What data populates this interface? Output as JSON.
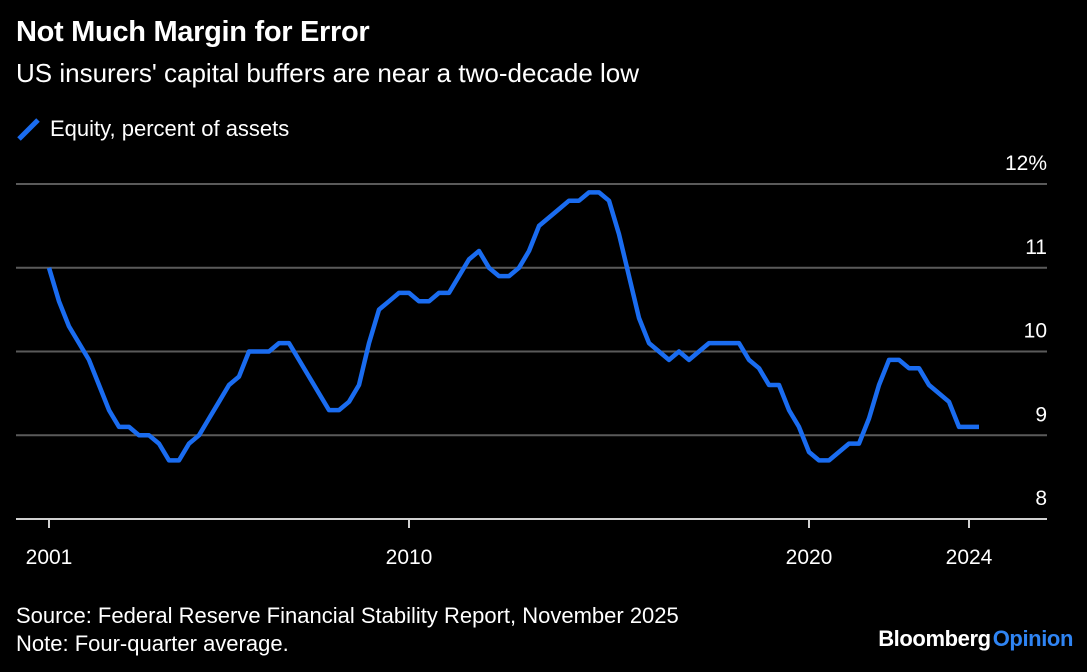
{
  "header": {
    "title": "Not Much Margin for Error",
    "subtitle": "US insurers' capital buffers are near a two-decade low"
  },
  "legend": {
    "label": "Equity, percent of assets"
  },
  "footer": {
    "source": "Source: Federal Reserve Financial Stability Report, November 2025",
    "note": "Note: Four-quarter average."
  },
  "brand": {
    "main": "Bloomberg",
    "accent": "Opinion"
  },
  "colors": {
    "background": "#000000",
    "line": "#1a6cf0",
    "grid": "#5a5a5a",
    "text": "#ffffff",
    "brand_accent": "#2f84f3"
  },
  "chart_data": {
    "type": "line",
    "title": "Not Much Margin for Error",
    "subtitle": "US insurers' capital buffers are near a two-decade low",
    "xlabel": "",
    "ylabel": "",
    "x_ticks": [
      2001,
      2010,
      2020,
      2024
    ],
    "x_tick_labels": [
      "2001",
      "2010",
      "2020",
      "2024"
    ],
    "y_ticks": [
      8,
      9,
      10,
      11,
      12
    ],
    "y_tick_labels": [
      "8",
      "9",
      "10",
      "11",
      "12%"
    ],
    "xlim": [
      2001,
      2026
    ],
    "ylim": [
      8,
      12
    ],
    "grid": "horizontal",
    "legend_position": "top-left",
    "series": [
      {
        "name": "Equity, percent of assets",
        "color": "#1a6cf0",
        "x": [
          2001.0,
          2001.25,
          2001.5,
          2001.75,
          2002.0,
          2002.25,
          2002.5,
          2002.75,
          2003.0,
          2003.25,
          2003.5,
          2003.75,
          2004.0,
          2004.25,
          2004.5,
          2004.75,
          2005.0,
          2005.25,
          2005.5,
          2005.75,
          2006.0,
          2006.25,
          2006.5,
          2006.75,
          2007.0,
          2007.25,
          2007.5,
          2007.75,
          2008.0,
          2008.25,
          2008.5,
          2008.75,
          2009.0,
          2009.25,
          2009.5,
          2009.75,
          2010.0,
          2010.25,
          2010.5,
          2010.75,
          2011.0,
          2011.25,
          2011.5,
          2011.75,
          2012.0,
          2012.25,
          2012.5,
          2012.75,
          2013.0,
          2013.25,
          2013.5,
          2013.75,
          2014.0,
          2014.25,
          2014.5,
          2014.75,
          2015.0,
          2015.25,
          2015.5,
          2015.75,
          2016.0,
          2016.25,
          2016.5,
          2016.75,
          2017.0,
          2017.25,
          2017.5,
          2017.75,
          2018.0,
          2018.25,
          2018.5,
          2018.75,
          2019.0,
          2019.25,
          2019.5,
          2019.75,
          2020.0,
          2020.25,
          2020.5,
          2020.75,
          2021.0,
          2021.25,
          2021.5,
          2021.75,
          2022.0,
          2022.25,
          2022.5,
          2022.75,
          2023.0,
          2023.25,
          2023.5,
          2023.75,
          2024.0,
          2024.25
        ],
        "values": [
          11.0,
          10.6,
          10.3,
          10.1,
          9.9,
          9.6,
          9.3,
          9.1,
          9.1,
          9.0,
          9.0,
          8.9,
          8.7,
          8.7,
          8.9,
          9.0,
          9.2,
          9.4,
          9.6,
          9.7,
          10.0,
          10.0,
          10.0,
          10.1,
          10.1,
          9.9,
          9.7,
          9.5,
          9.3,
          9.3,
          9.4,
          9.6,
          10.1,
          10.5,
          10.6,
          10.7,
          10.7,
          10.6,
          10.6,
          10.7,
          10.7,
          10.9,
          11.1,
          11.2,
          11.0,
          10.9,
          10.9,
          11.0,
          11.2,
          11.5,
          11.6,
          11.7,
          11.8,
          11.8,
          11.9,
          11.9,
          11.8,
          11.4,
          10.9,
          10.4,
          10.1,
          10.0,
          9.9,
          10.0,
          9.9,
          10.0,
          10.1,
          10.1,
          10.1,
          10.1,
          9.9,
          9.8,
          9.6,
          9.6,
          9.3,
          9.1,
          8.8,
          8.7,
          8.7,
          8.8,
          8.9,
          8.9,
          9.2,
          9.6,
          9.9,
          9.9,
          9.8,
          9.8,
          9.6,
          9.5,
          9.4,
          9.1,
          9.1,
          9.1
        ]
      }
    ]
  }
}
